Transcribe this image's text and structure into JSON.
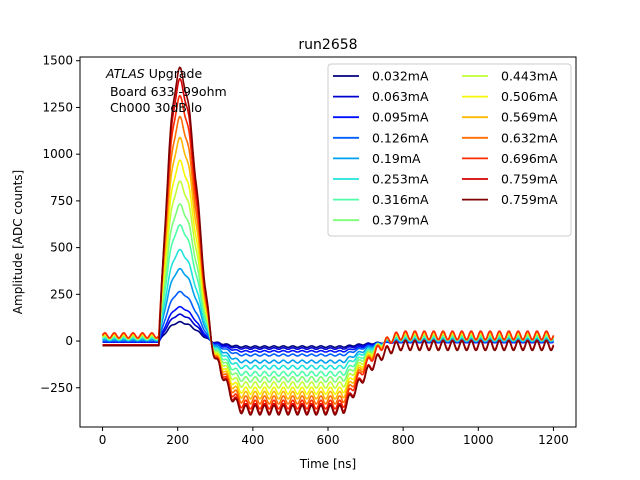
{
  "chart_data": {
    "type": "line",
    "title": "run2658",
    "xlabel": "Time [ns]",
    "ylabel": "Amplitude [ADC counts]",
    "xlim": [
      -60,
      1260
    ],
    "ylim": [
      -460,
      1520
    ],
    "xticks": [
      0,
      200,
      400,
      600,
      800,
      1000,
      1200
    ],
    "yticks": [
      -250,
      0,
      250,
      500,
      750,
      1000,
      1250,
      1500
    ],
    "grid": false,
    "legend_position": "top-right",
    "legend_columns": 2,
    "annotation": {
      "line1_italic": "ATLAS",
      "line1_rest": " Upgrade",
      "line2": " Board 633 -99ohm",
      "line3": " Ch000 30dB lo"
    },
    "x_range": [
      0,
      1200
    ],
    "series": [
      {
        "name": "0.032mA",
        "color": "#00007f",
        "peak": 100,
        "undershoot": -30,
        "baseline": -5
      },
      {
        "name": "0.063mA",
        "color": "#0000d1",
        "peak": 140,
        "undershoot": -40,
        "baseline": -5
      },
      {
        "name": "0.095mA",
        "color": "#0010ff",
        "peak": 180,
        "undershoot": -55,
        "baseline": -5
      },
      {
        "name": "0.126mA",
        "color": "#0060ff",
        "peak": 260,
        "undershoot": -75,
        "baseline": 0
      },
      {
        "name": "0.19mA",
        "color": "#00a0f0",
        "peak": 380,
        "undershoot": -110,
        "baseline": 5
      },
      {
        "name": "0.253mA",
        "color": "#20e4da",
        "peak": 480,
        "undershoot": -140,
        "baseline": 10
      },
      {
        "name": "0.316mA",
        "color": "#4effa8",
        "peak": 610,
        "undershoot": -175,
        "baseline": 15
      },
      {
        "name": "0.379mA",
        "color": "#7dff7a",
        "peak": 720,
        "undershoot": -205,
        "baseline": 20
      },
      {
        "name": "0.443mA",
        "color": "#c1ff36",
        "peak": 840,
        "undershoot": -235,
        "baseline": 22
      },
      {
        "name": "0.506mA",
        "color": "#f4f802",
        "peak": 950,
        "undershoot": -265,
        "baseline": 25
      },
      {
        "name": "0.569mA",
        "color": "#ffb900",
        "peak": 1070,
        "undershoot": -290,
        "baseline": 28
      },
      {
        "name": "0.632mA",
        "color": "#ff6e00",
        "peak": 1180,
        "undershoot": -315,
        "baseline": 30
      },
      {
        "name": "0.696mA",
        "color": "#ff2a00",
        "peak": 1290,
        "undershoot": -340,
        "baseline": 30
      },
      {
        "name": "0.759mA",
        "color": "#d40000",
        "peak": 1380,
        "undershoot": -360,
        "baseline": -20
      },
      {
        "name": "0.759mA",
        "color": "#7f0000",
        "peak": 1440,
        "undershoot": -370,
        "baseline": -25
      }
    ]
  }
}
